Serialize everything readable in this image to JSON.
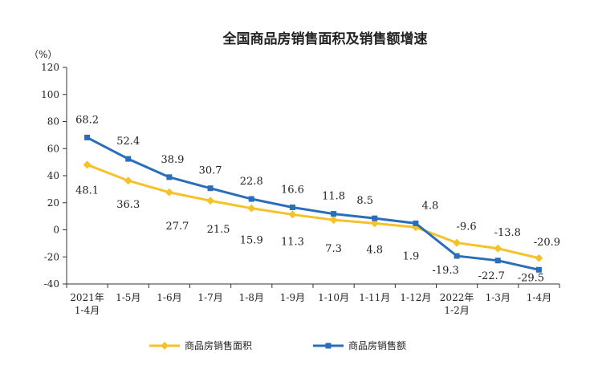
{
  "chart_data": {
    "type": "line",
    "title": "全国商品房销售面积及销售额增速",
    "ylabel": "（%）",
    "ylim": [
      -40,
      120
    ],
    "yticks": [
      120,
      100,
      80,
      60,
      40,
      20,
      0,
      -20,
      -40
    ],
    "grid": false,
    "legend_position": "bottom",
    "categories": [
      [
        "2021年",
        "1-4月"
      ],
      [
        "1-5月"
      ],
      [
        "1-6月"
      ],
      [
        "1-7月"
      ],
      [
        "1-8月"
      ],
      [
        "1-9月"
      ],
      [
        "1-10月"
      ],
      [
        "1-11月"
      ],
      [
        "1-12月"
      ],
      [
        "2022年",
        "1-2月"
      ],
      [
        "1-3月"
      ],
      [
        "1-4月"
      ]
    ],
    "series": [
      {
        "name": "商品房销售面积",
        "color": "#F5C22A",
        "marker": "diamond",
        "values": [
          48.1,
          36.3,
          27.7,
          21.5,
          15.9,
          11.3,
          7.3,
          4.8,
          1.9,
          -9.6,
          -13.8,
          -20.9
        ],
        "labels": [
          "48.1",
          "36.3",
          "27.7",
          "21.5",
          "15.9",
          "11.3",
          "7.3",
          "4.8",
          "1.9",
          "-9.6",
          "-13.8",
          "-20.9"
        ]
      },
      {
        "name": "商品房销售额",
        "color": "#2A6EBB",
        "marker": "square",
        "values": [
          68.2,
          52.4,
          38.9,
          30.7,
          22.8,
          16.6,
          11.8,
          8.5,
          4.8,
          -19.3,
          -22.7,
          -29.5
        ],
        "labels": [
          "68.2",
          "52.4",
          "38.9",
          "30.7",
          "22.8",
          "16.6",
          "11.8",
          "8.5",
          "4.8",
          "-19.3",
          "-22.7",
          "-29.5"
        ]
      }
    ]
  }
}
